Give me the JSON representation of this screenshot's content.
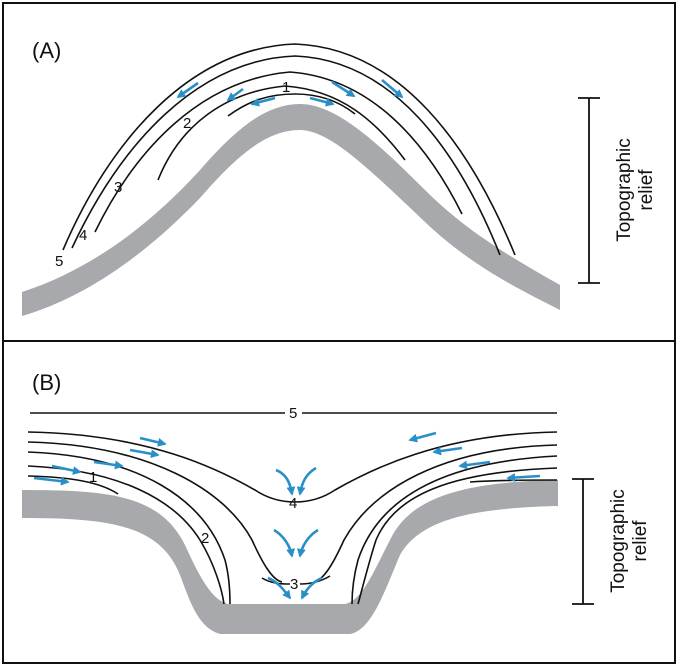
{
  "colors": {
    "ground": "#a7a9ac",
    "arrow": "#2b8fc7",
    "line": "#111111",
    "frame": "#111111"
  },
  "panel_a": {
    "label": "(A)",
    "contours": [
      "1",
      "2",
      "3",
      "4",
      "5"
    ],
    "relief_label": [
      "Topographic",
      "relief"
    ]
  },
  "panel_b": {
    "label": "(B)",
    "contours": [
      "1",
      "2",
      "3",
      "4",
      "5"
    ],
    "relief_label": [
      "Topographic",
      "relief"
    ]
  }
}
